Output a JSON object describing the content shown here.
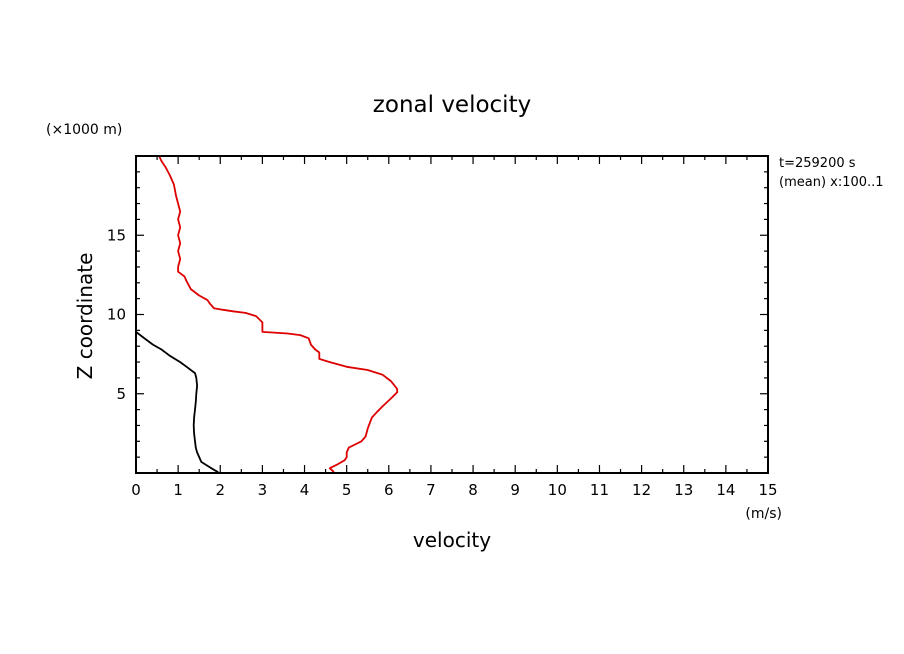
{
  "chart_data": {
    "type": "line",
    "title": "zonal velocity",
    "xlabel": "velocity",
    "ylabel": "Z coordinate",
    "x_unit": "(m/s)",
    "y_unit": "(×1000 m)",
    "xlim": [
      0,
      15
    ],
    "ylim": [
      0,
      20
    ],
    "x_ticks": [
      "0",
      "1",
      "2",
      "3",
      "4",
      "5",
      "6",
      "7",
      "8",
      "9",
      "10",
      "11",
      "12",
      "13",
      "14",
      "15"
    ],
    "y_ticks": [
      "5",
      "10",
      "15"
    ],
    "annotations": [
      "t=259200 s",
      "(mean) x:100..1"
    ],
    "grid": false,
    "legend": "none",
    "series": [
      {
        "color": "#000000",
        "points": [
          [
            1.95,
            0.05
          ],
          [
            1.85,
            0.2
          ],
          [
            1.7,
            0.45
          ],
          [
            1.55,
            0.7
          ],
          [
            1.5,
            1.0
          ],
          [
            1.45,
            1.3
          ],
          [
            1.42,
            1.6
          ],
          [
            1.4,
            2.0
          ],
          [
            1.38,
            2.5
          ],
          [
            1.37,
            3.0
          ],
          [
            1.38,
            3.5
          ],
          [
            1.4,
            4.0
          ],
          [
            1.42,
            4.5
          ],
          [
            1.43,
            5.0
          ],
          [
            1.45,
            5.5
          ],
          [
            1.43,
            6.0
          ],
          [
            1.4,
            6.3
          ],
          [
            1.3,
            6.5
          ],
          [
            1.2,
            6.7
          ],
          [
            1.05,
            7.0
          ],
          [
            0.8,
            7.4
          ],
          [
            0.6,
            7.8
          ],
          [
            0.4,
            8.1
          ],
          [
            0.25,
            8.4
          ],
          [
            0.1,
            8.7
          ],
          [
            0.0,
            8.9
          ]
        ]
      },
      {
        "color": "#dd0000",
        "points": [
          [
            4.7,
            0.05
          ],
          [
            4.6,
            0.3
          ],
          [
            4.75,
            0.5
          ],
          [
            4.95,
            0.8
          ],
          [
            5.0,
            1.0
          ],
          [
            5.0,
            1.3
          ],
          [
            5.05,
            1.6
          ],
          [
            5.2,
            1.8
          ],
          [
            5.35,
            2.0
          ],
          [
            5.45,
            2.3
          ],
          [
            5.5,
            2.8
          ],
          [
            5.6,
            3.5
          ],
          [
            5.7,
            3.8
          ],
          [
            5.85,
            4.2
          ],
          [
            6.05,
            4.7
          ],
          [
            6.2,
            5.1
          ],
          [
            6.2,
            5.3
          ],
          [
            6.05,
            5.8
          ],
          [
            5.85,
            6.2
          ],
          [
            5.5,
            6.5
          ],
          [
            5.0,
            6.7
          ],
          [
            4.6,
            7.0
          ],
          [
            4.35,
            7.2
          ],
          [
            4.35,
            7.6
          ],
          [
            4.25,
            7.8
          ],
          [
            4.15,
            8.1
          ],
          [
            4.1,
            8.5
          ],
          [
            3.9,
            8.7
          ],
          [
            3.6,
            8.8
          ],
          [
            3.0,
            8.9
          ],
          [
            3.0,
            9.5
          ],
          [
            2.85,
            9.9
          ],
          [
            2.6,
            10.1
          ],
          [
            2.3,
            10.2
          ],
          [
            2.05,
            10.3
          ],
          [
            1.85,
            10.4
          ],
          [
            1.75,
            10.7
          ],
          [
            1.7,
            10.9
          ],
          [
            1.5,
            11.2
          ],
          [
            1.3,
            11.6
          ],
          [
            1.2,
            12.1
          ],
          [
            1.15,
            12.4
          ],
          [
            1.0,
            12.7
          ],
          [
            1.0,
            13.0
          ],
          [
            1.05,
            13.5
          ],
          [
            1.0,
            14.0
          ],
          [
            1.05,
            14.5
          ],
          [
            1.0,
            15.0
          ],
          [
            1.05,
            15.5
          ],
          [
            1.0,
            16.0
          ],
          [
            1.05,
            16.5
          ],
          [
            1.0,
            17.0
          ],
          [
            0.95,
            17.5
          ],
          [
            0.9,
            18.2
          ],
          [
            0.8,
            18.8
          ],
          [
            0.7,
            19.3
          ],
          [
            0.6,
            19.7
          ],
          [
            0.55,
            20.0
          ]
        ]
      }
    ]
  }
}
